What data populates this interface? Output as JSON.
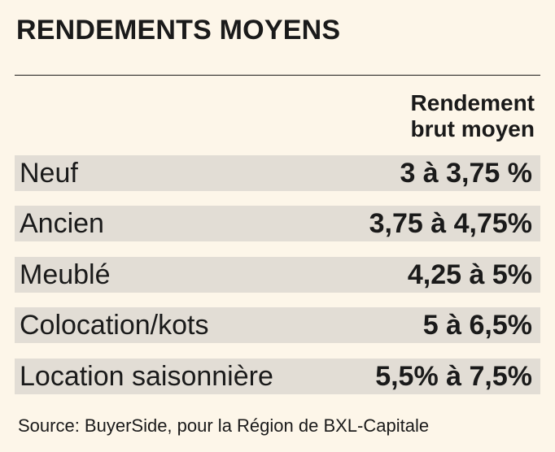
{
  "title": "RENDEMENTS MOYENS",
  "column_header": {
    "line1": "Rendement",
    "line2": "brut moyen"
  },
  "rows": [
    {
      "label": "Neuf",
      "value": "3 à 3,75 %"
    },
    {
      "label": "Ancien",
      "value": "3,75 à 4,75%"
    },
    {
      "label": "Meublé",
      "value": "4,25 à 5%"
    },
    {
      "label": "Colocation/kots",
      "value": "5 à 6,5%"
    },
    {
      "label": "Location saisonnière",
      "value": "5,5% à 7,5%"
    }
  ],
  "source": "Source: BuyerSide, pour la Région de BXL-Capitale",
  "colors": {
    "background": "#fdf6e9",
    "row_band": "#e2ddd5",
    "text": "#1a1a1a"
  }
}
